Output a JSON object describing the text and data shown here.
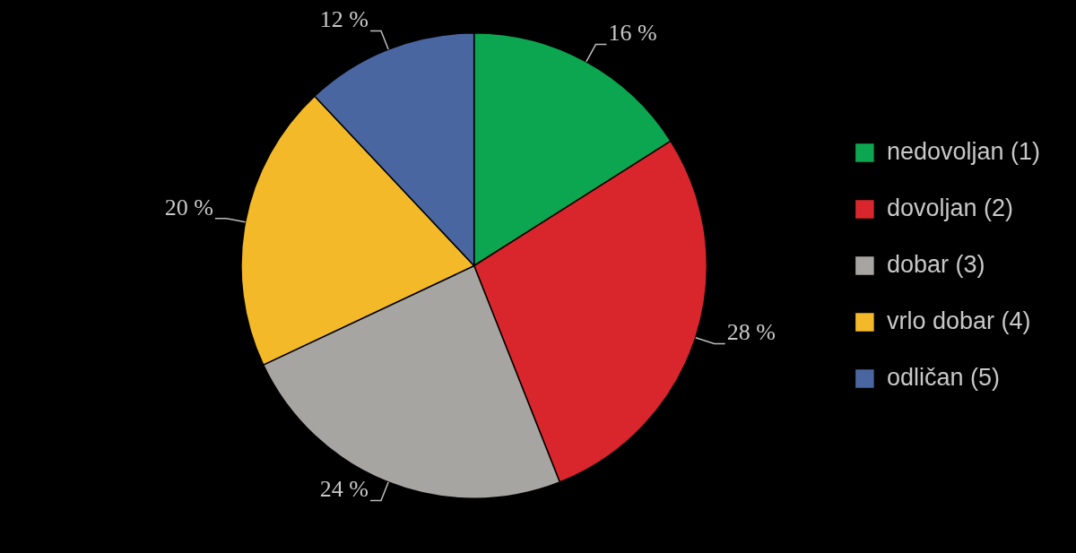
{
  "chart_data": {
    "type": "pie",
    "categories": [
      "nedovoljan (1)",
      "dovoljan (2)",
      "dobar (3)",
      "vrlo dobar (4)",
      "odličan (5)"
    ],
    "values": [
      16,
      28,
      24,
      20,
      12
    ],
    "colors": [
      "#0ba64f",
      "#d8262c",
      "#a6a5a1",
      "#f4b929",
      "#4a66a0"
    ],
    "value_labels": [
      "16 %",
      "28 %",
      "24 %",
      "20 %",
      "12 %"
    ],
    "legend": "right"
  }
}
